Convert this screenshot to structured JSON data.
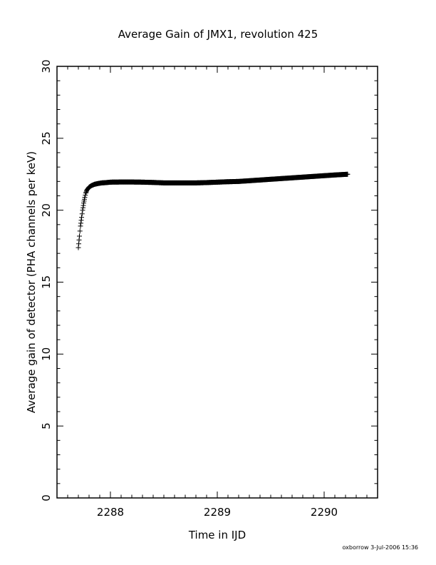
{
  "chart_data": {
    "type": "scatter",
    "title": "Average Gain of JMX1, revolution 425",
    "xlabel": "Time in IJD",
    "ylabel": "Average gain of detector (PHA channels per keV)",
    "xlim": [
      2287.5,
      2290.5
    ],
    "ylim": [
      0,
      30
    ],
    "x_ticks": [
      2288,
      2289,
      2290
    ],
    "y_ticks": [
      0,
      5,
      10,
      15,
      20,
      25,
      30
    ],
    "marker": "plus",
    "grid": false,
    "series": [
      {
        "x": [
          2287.7,
          2287.71,
          2287.72,
          2287.73,
          2287.74,
          2287.75,
          2287.76,
          2287.77,
          2287.78,
          2287.8,
          2287.82,
          2287.85,
          2287.88,
          2287.92,
          2287.96,
          2288.0,
          2288.1,
          2288.2,
          2288.3,
          2288.4,
          2288.5,
          2288.6,
          2288.7,
          2288.8,
          2288.9,
          2289.0,
          2289.1,
          2289.2,
          2289.3,
          2289.4,
          2289.5,
          2289.6,
          2289.7,
          2289.8,
          2289.9,
          2290.0,
          2290.1,
          2290.22
        ],
        "y": [
          17.4,
          18.2,
          18.9,
          19.5,
          20.0,
          20.5,
          20.9,
          21.2,
          21.4,
          21.6,
          21.7,
          21.8,
          21.85,
          21.9,
          21.92,
          21.95,
          21.96,
          21.96,
          21.95,
          21.93,
          21.9,
          21.9,
          21.9,
          21.9,
          21.92,
          21.95,
          21.98,
          22.0,
          22.05,
          22.1,
          22.15,
          22.2,
          22.25,
          22.3,
          22.35,
          22.4,
          22.45,
          22.5
        ]
      }
    ]
  },
  "footer": {
    "stamp": "oxborrow   3-Jul-2006 15:36"
  }
}
